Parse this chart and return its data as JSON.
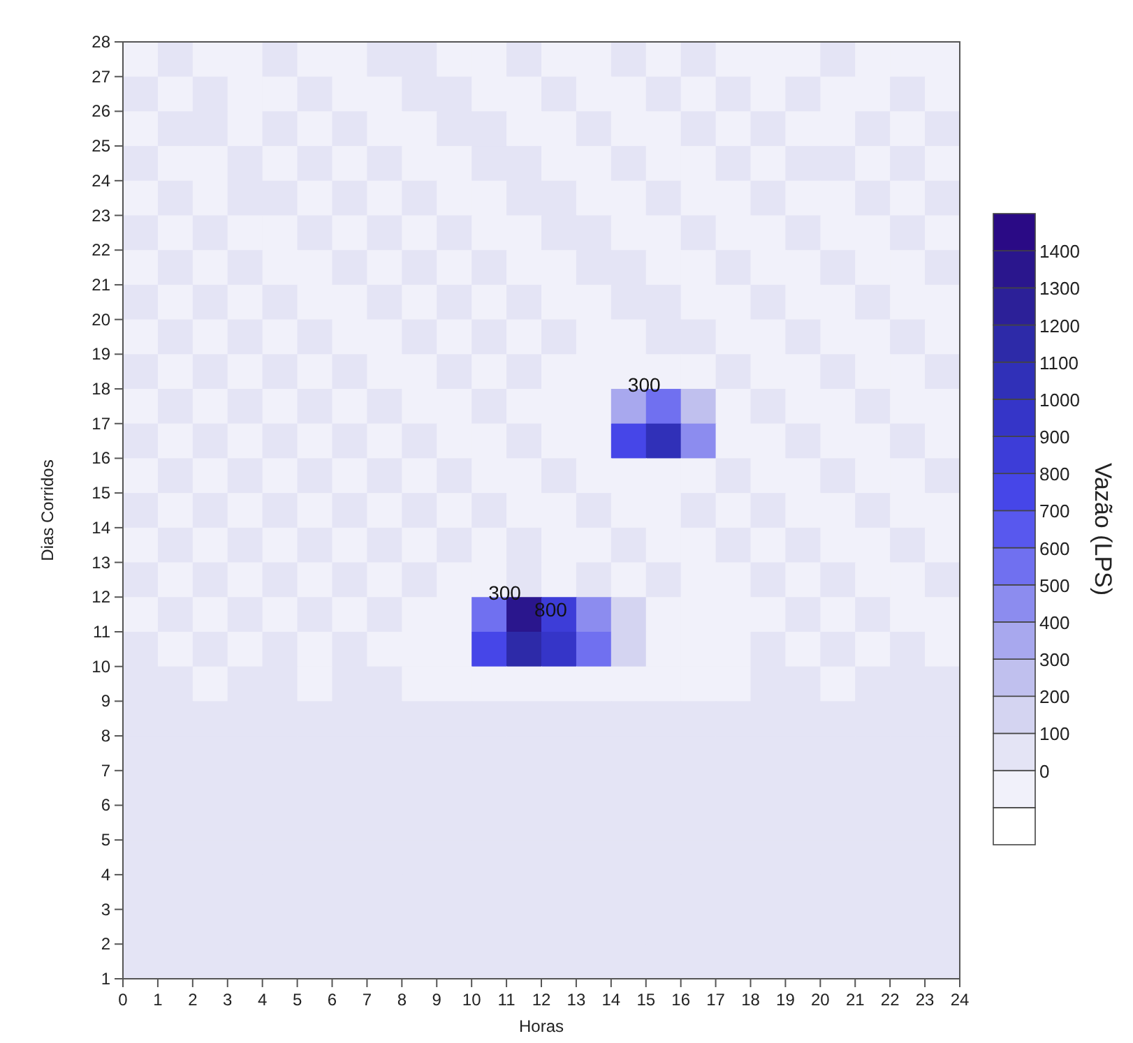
{
  "chart_data": {
    "type": "heatmap",
    "xlabel": "Horas",
    "ylabel": "Dias Corridos",
    "clabel": "Vazão (LPS)",
    "xlim": [
      0,
      24
    ],
    "xticks": [
      0,
      1,
      2,
      3,
      4,
      5,
      6,
      7,
      8,
      9,
      10,
      11,
      12,
      13,
      14,
      15,
      16,
      17,
      18,
      19,
      20,
      21,
      22,
      23,
      24
    ],
    "ylim": [
      1,
      28
    ],
    "yticks": [
      1,
      2,
      3,
      4,
      5,
      6,
      7,
      8,
      9,
      10,
      11,
      12,
      13,
      14,
      15,
      16,
      17,
      18,
      19,
      20,
      21,
      22,
      23,
      24,
      25,
      26,
      27,
      28
    ],
    "clim": [
      -200,
      1500
    ],
    "cticks": [
      0,
      100,
      200,
      300,
      400,
      500,
      600,
      700,
      800,
      900,
      1000,
      1100,
      1200,
      1300,
      1400
    ],
    "annotations": [
      "300",
      "300",
      "800"
    ],
    "cells": [
      [
        -50,
        50,
        -50,
        -50,
        50,
        -50,
        -50,
        50,
        50,
        -50,
        -50,
        50,
        -50,
        -50,
        50,
        -50,
        50,
        -50,
        -50,
        -50,
        50,
        -50,
        -50,
        -50
      ],
      [
        50,
        -50,
        50,
        -50,
        -50,
        50,
        -50,
        -50,
        50,
        50,
        -50,
        -50,
        50,
        -50,
        -50,
        50,
        -50,
        50,
        -50,
        50,
        -50,
        -50,
        50,
        -50
      ],
      [
        -50,
        50,
        50,
        -50,
        50,
        -50,
        50,
        -50,
        -50,
        50,
        50,
        -50,
        -50,
        50,
        -50,
        -50,
        50,
        -50,
        50,
        -50,
        -50,
        50,
        -50,
        50
      ],
      [
        50,
        -50,
        -50,
        50,
        -50,
        50,
        -50,
        50,
        -50,
        -50,
        50,
        50,
        -50,
        -50,
        50,
        -50,
        -50,
        50,
        -50,
        50,
        50,
        -50,
        50,
        -50
      ],
      [
        -50,
        50,
        -50,
        50,
        50,
        -50,
        50,
        -50,
        50,
        -50,
        -50,
        50,
        50,
        -50,
        -50,
        50,
        -50,
        -50,
        50,
        -50,
        -50,
        50,
        -50,
        50
      ],
      [
        50,
        -50,
        50,
        -50,
        -50,
        50,
        -50,
        50,
        -50,
        50,
        -50,
        -50,
        50,
        50,
        -50,
        -50,
        50,
        -50,
        -50,
        50,
        -50,
        -50,
        50,
        -50
      ],
      [
        -50,
        50,
        -50,
        50,
        -50,
        -50,
        50,
        -50,
        50,
        -50,
        50,
        -50,
        -50,
        50,
        50,
        -50,
        -50,
        50,
        -50,
        -50,
        50,
        -50,
        -50,
        50
      ],
      [
        50,
        -50,
        50,
        -50,
        50,
        -50,
        -50,
        50,
        -50,
        50,
        -50,
        50,
        -50,
        -50,
        50,
        50,
        -50,
        -50,
        50,
        -50,
        -50,
        50,
        -50,
        -50
      ],
      [
        -50,
        50,
        -50,
        50,
        -50,
        50,
        -50,
        -50,
        50,
        -50,
        50,
        -50,
        50,
        -50,
        -50,
        50,
        50,
        -50,
        -50,
        50,
        -50,
        -50,
        50,
        -50
      ],
      [
        50,
        -50,
        50,
        -50,
        50,
        -50,
        50,
        -50,
        -50,
        50,
        -50,
        50,
        -50,
        -50,
        -50,
        -50,
        -50,
        50,
        -50,
        -50,
        50,
        -50,
        -50,
        50
      ],
      [
        -50,
        50,
        -50,
        50,
        -50,
        50,
        -50,
        50,
        -50,
        -50,
        50,
        -50,
        -50,
        -50,
        350,
        550,
        250,
        -50,
        50,
        -50,
        -50,
        50,
        -50,
        -50
      ],
      [
        50,
        -50,
        50,
        -50,
        50,
        -50,
        50,
        -50,
        50,
        -50,
        -50,
        50,
        -50,
        -50,
        750,
        1050,
        450,
        -50,
        -50,
        50,
        -50,
        -50,
        50,
        -50
      ],
      [
        -50,
        50,
        -50,
        50,
        -50,
        50,
        -50,
        50,
        -50,
        50,
        -50,
        -50,
        50,
        -50,
        -50,
        -50,
        -50,
        50,
        -50,
        -50,
        50,
        -50,
        -50,
        50
      ],
      [
        50,
        -50,
        50,
        -50,
        50,
        -50,
        50,
        -50,
        50,
        -50,
        50,
        -50,
        -50,
        50,
        -50,
        -50,
        50,
        -50,
        50,
        -50,
        -50,
        50,
        -50,
        -50
      ],
      [
        -50,
        50,
        -50,
        50,
        -50,
        50,
        -50,
        50,
        -50,
        50,
        -50,
        50,
        -50,
        -50,
        50,
        -50,
        -50,
        50,
        -50,
        50,
        -50,
        -50,
        50,
        -50
      ],
      [
        50,
        -50,
        50,
        -50,
        50,
        -50,
        50,
        -50,
        50,
        -50,
        -50,
        50,
        -50,
        50,
        -50,
        50,
        -50,
        -50,
        50,
        -50,
        50,
        -50,
        -50,
        50
      ],
      [
        -50,
        50,
        -50,
        50,
        -50,
        50,
        -50,
        50,
        -50,
        -50,
        550,
        1350,
        850,
        450,
        150,
        -50,
        -50,
        -50,
        -50,
        50,
        -50,
        50,
        -50,
        -50
      ],
      [
        50,
        -50,
        50,
        -50,
        50,
        -50,
        50,
        -50,
        -50,
        -50,
        750,
        1150,
        950,
        550,
        150,
        -50,
        -50,
        -50,
        50,
        -50,
        50,
        -50,
        50,
        -50
      ],
      [
        50,
        50,
        -50,
        50,
        50,
        -50,
        50,
        50,
        -50,
        -50,
        -50,
        -50,
        -50,
        -50,
        -50,
        -50,
        -50,
        -50,
        50,
        50,
        -50,
        50,
        50,
        50
      ],
      [
        50,
        50,
        50,
        50,
        50,
        50,
        50,
        50,
        50,
        50,
        50,
        50,
        50,
        50,
        50,
        50,
        50,
        50,
        50,
        50,
        50,
        50,
        50,
        50
      ],
      [
        50,
        50,
        50,
        50,
        50,
        50,
        50,
        50,
        50,
        50,
        50,
        50,
        50,
        50,
        50,
        50,
        50,
        50,
        50,
        50,
        50,
        50,
        50,
        50
      ],
      [
        50,
        50,
        50,
        50,
        50,
        50,
        50,
        50,
        50,
        50,
        50,
        50,
        50,
        50,
        50,
        50,
        50,
        50,
        50,
        50,
        50,
        50,
        50,
        50
      ],
      [
        50,
        50,
        50,
        50,
        50,
        50,
        50,
        50,
        50,
        50,
        50,
        50,
        50,
        50,
        50,
        50,
        50,
        50,
        50,
        50,
        50,
        50,
        50,
        50
      ],
      [
        50,
        50,
        50,
        50,
        50,
        50,
        50,
        50,
        50,
        50,
        50,
        50,
        50,
        50,
        50,
        50,
        50,
        50,
        50,
        50,
        50,
        50,
        50,
        50
      ],
      [
        50,
        50,
        50,
        50,
        50,
        50,
        50,
        50,
        50,
        50,
        50,
        50,
        50,
        50,
        50,
        50,
        50,
        50,
        50,
        50,
        50,
        50,
        50,
        50
      ],
      [
        50,
        50,
        50,
        50,
        50,
        50,
        50,
        50,
        50,
        50,
        50,
        50,
        50,
        50,
        50,
        50,
        50,
        50,
        50,
        50,
        50,
        50,
        50,
        50
      ],
      [
        50,
        50,
        50,
        50,
        50,
        50,
        50,
        50,
        50,
        50,
        50,
        50,
        50,
        50,
        50,
        50,
        50,
        50,
        50,
        50,
        50,
        50,
        50,
        50
      ]
    ]
  }
}
